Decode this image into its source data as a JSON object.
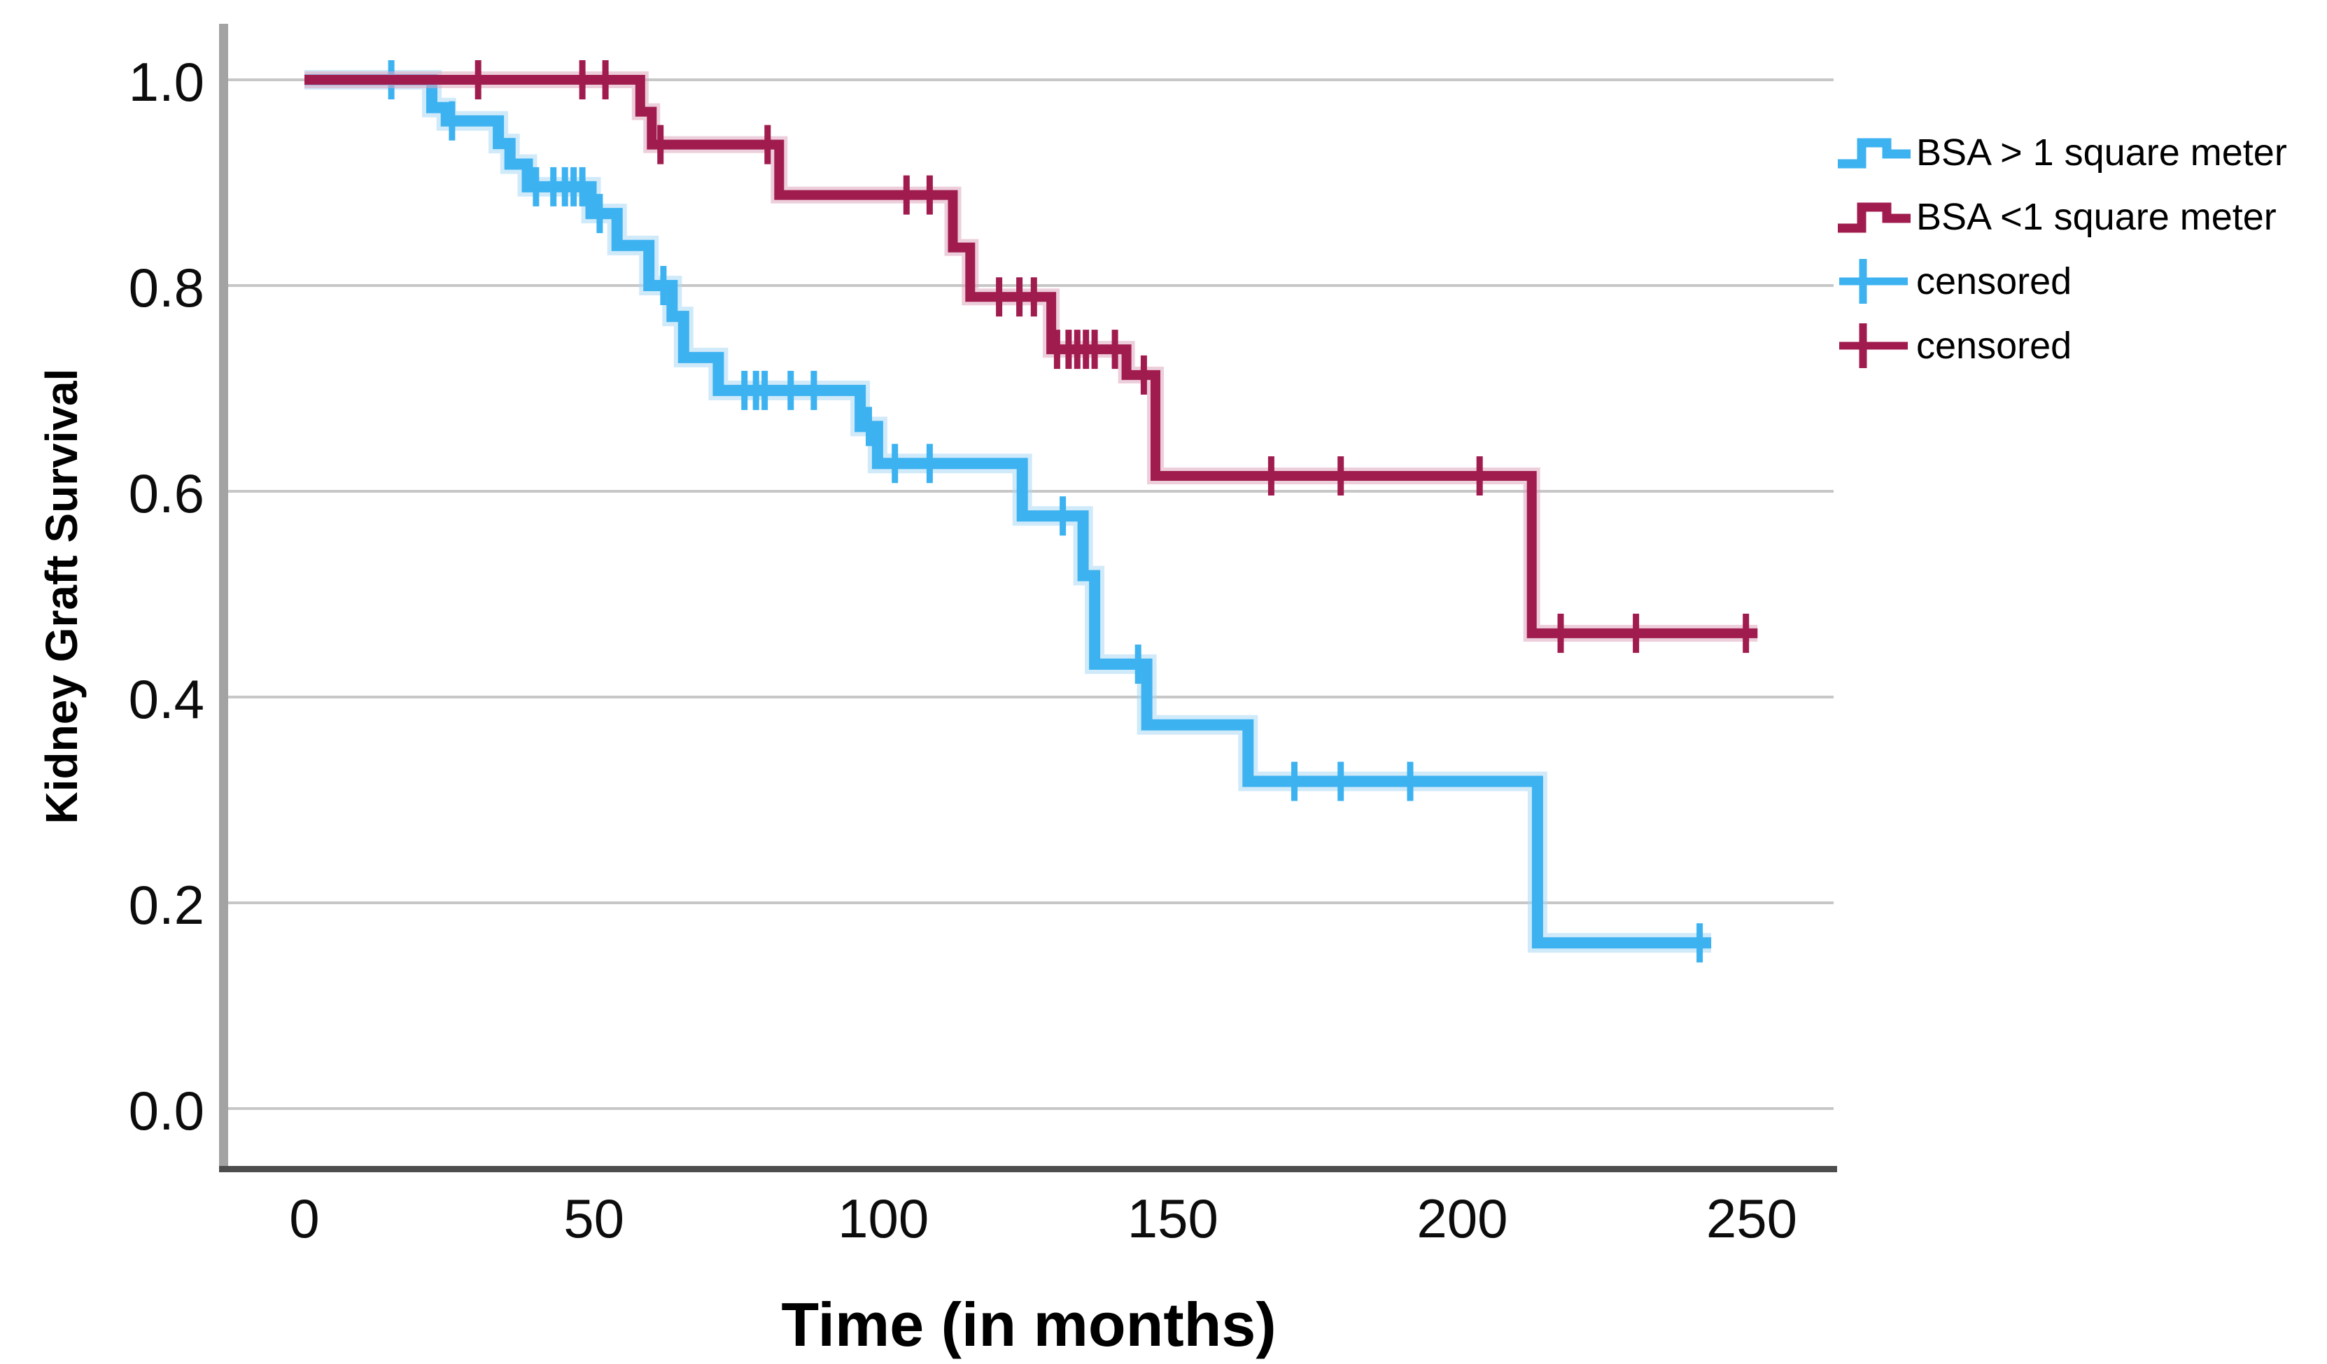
{
  "chart_data": {
    "type": "line",
    "subtype": "kaplan-meier-step",
    "title": "",
    "xlabel": "Time (in months)",
    "ylabel": "Kidney Graft Survival",
    "xlim": [
      0,
      265
    ],
    "ylim": [
      0,
      1.0
    ],
    "grid": true,
    "legend_position": "top-right",
    "xticks": [
      0,
      50,
      100,
      150,
      200,
      250
    ],
    "xtick_labels": [
      "0",
      "50",
      "100",
      "150",
      "200",
      "250"
    ],
    "yticks": [
      1.0,
      0.8,
      0.6,
      0.4,
      0.2,
      0.0
    ],
    "ytick_labels": [
      "1.0",
      "0.8",
      "0.6",
      "0.4",
      "0.2",
      "0.0"
    ],
    "series": [
      {
        "name": "BSA > 1 square meter",
        "color": "#3db2f0",
        "halo": "#a9d9f5",
        "steps": [
          [
            0,
            1.0
          ],
          [
            22,
            0.973
          ],
          [
            24.5,
            0.96
          ],
          [
            33.5,
            0.938
          ],
          [
            35.5,
            0.918
          ],
          [
            38.5,
            0.896
          ],
          [
            49.5,
            0.87
          ],
          [
            54,
            0.839
          ],
          [
            59.5,
            0.8
          ],
          [
            63.5,
            0.77
          ],
          [
            65.5,
            0.73
          ],
          [
            71.5,
            0.698
          ],
          [
            96,
            0.663
          ],
          [
            99,
            0.627
          ],
          [
            124,
            0.576
          ],
          [
            134.5,
            0.518
          ],
          [
            136.5,
            0.432
          ],
          [
            145.5,
            0.373
          ],
          [
            163,
            0.318
          ],
          [
            213,
            0.161
          ]
        ],
        "end_time": 243,
        "censored": [
          [
            15,
            1.0
          ],
          [
            25.5,
            0.96
          ],
          [
            40,
            0.896
          ],
          [
            43,
            0.896
          ],
          [
            45,
            0.896
          ],
          [
            46.5,
            0.896
          ],
          [
            48,
            0.896
          ],
          [
            51,
            0.87
          ],
          [
            62,
            0.8
          ],
          [
            76,
            0.698
          ],
          [
            78,
            0.698
          ],
          [
            79.5,
            0.698
          ],
          [
            84,
            0.698
          ],
          [
            88,
            0.698
          ],
          [
            97.5,
            0.663
          ],
          [
            102,
            0.627
          ],
          [
            108,
            0.627
          ],
          [
            131,
            0.576
          ],
          [
            144,
            0.432
          ],
          [
            171,
            0.318
          ],
          [
            179,
            0.318
          ],
          [
            191,
            0.318
          ],
          [
            241,
            0.161
          ]
        ]
      },
      {
        "name": "BSA <1 square meter",
        "color": "#a01c4e",
        "halo": "#dfa6bd",
        "steps": [
          [
            0,
            1.0
          ],
          [
            58,
            0.969
          ],
          [
            60,
            0.937
          ],
          [
            82,
            0.888
          ],
          [
            112,
            0.837
          ],
          [
            115,
            0.789
          ],
          [
            129,
            0.738
          ],
          [
            142,
            0.713
          ],
          [
            147,
            0.615
          ],
          [
            212,
            0.462
          ]
        ],
        "end_time": 251,
        "censored": [
          [
            30,
            1.0
          ],
          [
            48,
            1.0
          ],
          [
            52,
            1.0
          ],
          [
            61.5,
            0.937
          ],
          [
            80,
            0.937
          ],
          [
            104,
            0.888
          ],
          [
            108,
            0.888
          ],
          [
            120,
            0.789
          ],
          [
            123.5,
            0.789
          ],
          [
            126,
            0.789
          ],
          [
            130,
            0.738
          ],
          [
            132,
            0.738
          ],
          [
            133.5,
            0.738
          ],
          [
            135,
            0.738
          ],
          [
            136.5,
            0.738
          ],
          [
            140,
            0.738
          ],
          [
            145,
            0.713
          ],
          [
            167,
            0.615
          ],
          [
            179,
            0.615
          ],
          [
            203,
            0.615
          ],
          [
            217,
            0.462
          ],
          [
            230,
            0.462
          ],
          [
            249,
            0.462
          ]
        ]
      }
    ]
  },
  "legend": {
    "items": [
      {
        "label": "BSA > 1 square meter",
        "marker": "step-line",
        "color": "#3db2f0"
      },
      {
        "label": "BSA <1 square meter",
        "marker": "step-line",
        "color": "#a01c4e"
      },
      {
        "label": "censored",
        "marker": "plus",
        "color": "#3db2f0"
      },
      {
        "label": "censored",
        "marker": "plus",
        "color": "#a01c4e"
      }
    ]
  }
}
